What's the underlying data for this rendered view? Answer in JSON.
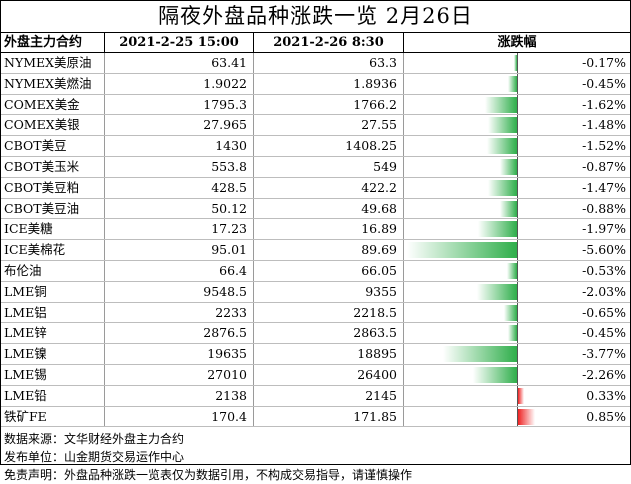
{
  "title": "隔夜外盘品种涨跌一览 2月26日",
  "headers": {
    "name": "外盘主力合约",
    "date1": "2021-2-25 15:00",
    "date2": "2021-2-26 8:30",
    "change": "涨跌幅"
  },
  "rows": [
    {
      "name": "NYMEX美原油",
      "v1": "63.41",
      "v2": "63.3",
      "pct": "-0.17%",
      "value": -0.17
    },
    {
      "name": "NYMEX美燃油",
      "v1": "1.9022",
      "v2": "1.8936",
      "pct": "-0.45%",
      "value": -0.45
    },
    {
      "name": "COMEX美金",
      "v1": "1795.3",
      "v2": "1766.2",
      "pct": "-1.62%",
      "value": -1.62
    },
    {
      "name": "COMEX美银",
      "v1": "27.965",
      "v2": "27.55",
      "pct": "-1.48%",
      "value": -1.48
    },
    {
      "name": "CBOT美豆",
      "v1": "1430",
      "v2": "1408.25",
      "pct": "-1.52%",
      "value": -1.52
    },
    {
      "name": "CBOT美玉米",
      "v1": "553.8",
      "v2": "549",
      "pct": "-0.87%",
      "value": -0.87
    },
    {
      "name": "CBOT美豆粕",
      "v1": "428.5",
      "v2": "422.2",
      "pct": "-1.47%",
      "value": -1.47
    },
    {
      "name": "CBOT美豆油",
      "v1": "50.12",
      "v2": "49.68",
      "pct": "-0.88%",
      "value": -0.88
    },
    {
      "name": "ICE美糖",
      "v1": "17.23",
      "v2": "16.89",
      "pct": "-1.97%",
      "value": -1.97
    },
    {
      "name": "ICE美棉花",
      "v1": "95.01",
      "v2": "89.69",
      "pct": "-5.60%",
      "value": -5.6
    },
    {
      "name": "布伦油",
      "v1": "66.4",
      "v2": "66.05",
      "pct": "-0.53%",
      "value": -0.53
    },
    {
      "name": "LME铜",
      "v1": "9548.5",
      "v2": "9355",
      "pct": "-2.03%",
      "value": -2.03
    },
    {
      "name": "LME铝",
      "v1": "2233",
      "v2": "2218.5",
      "pct": "-0.65%",
      "value": -0.65
    },
    {
      "name": "LME锌",
      "v1": "2876.5",
      "v2": "2863.5",
      "pct": "-0.45%",
      "value": -0.45
    },
    {
      "name": "LME镍",
      "v1": "19635",
      "v2": "18895",
      "pct": "-3.77%",
      "value": -3.77
    },
    {
      "name": "LME锡",
      "v1": "27010",
      "v2": "26400",
      "pct": "-2.26%",
      "value": -2.26
    },
    {
      "name": "LME铅",
      "v1": "2138",
      "v2": "2145",
      "pct": "0.33%",
      "value": 0.33
    },
    {
      "name": "铁矿FE",
      "v1": "170.4",
      "v2": "171.85",
      "pct": "0.85%",
      "value": 0.85
    }
  ],
  "notes": [
    "数据来源：文华财经外盘主力合约",
    "发布单位：山金期货交易运作中心",
    "免责声明：外盘品种涨跌一览表仅为数据引用，不构成交易指导，请谨慎操作"
  ],
  "colors": {
    "negative": "#2eae4a",
    "positive": "#ee2222"
  }
}
